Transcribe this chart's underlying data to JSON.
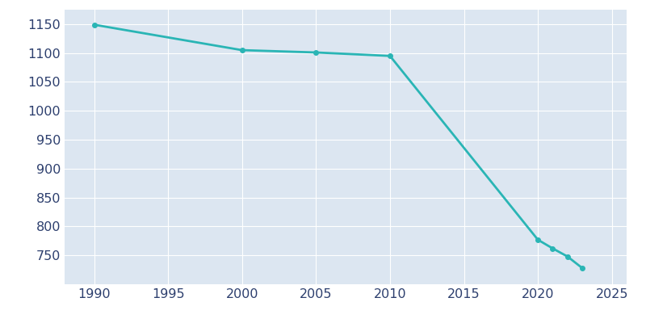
{
  "years": [
    1990,
    2000,
    2005,
    2010,
    2020,
    2021,
    2022,
    2023
  ],
  "population": [
    1149,
    1105,
    1101,
    1095,
    777,
    762,
    748,
    728
  ],
  "line_color": "#2ab5b5",
  "marker_color": "#2ab5b5",
  "axes_facecolor": "#dce6f1",
  "figure_facecolor": "#ffffff",
  "grid_color": "#ffffff",
  "tick_color": "#2d3f6e",
  "xlim": [
    1988,
    2026
  ],
  "ylim": [
    700,
    1175
  ],
  "yticks": [
    750,
    800,
    850,
    900,
    950,
    1000,
    1050,
    1100,
    1150
  ],
  "xticks": [
    1990,
    1995,
    2000,
    2005,
    2010,
    2015,
    2020,
    2025
  ],
  "line_width": 2.0,
  "marker_size": 4,
  "tick_fontsize": 11.5
}
